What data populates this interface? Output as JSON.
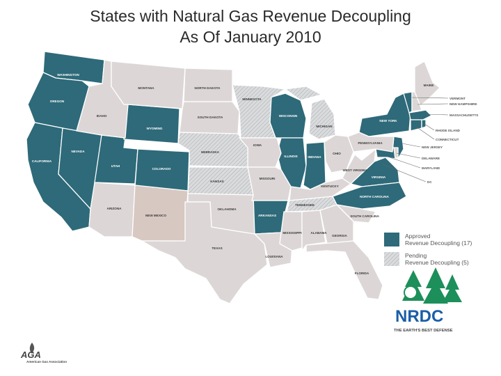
{
  "title": {
    "line1": "States with Natural Gas Revenue Decoupling",
    "line2": "As Of January 2010"
  },
  "colors": {
    "approved": "#2e6a79",
    "pending": "#cfd1d3",
    "other": "#dcd7d6",
    "new_mexico": "#d8c8c2",
    "nrdc_blue": "#1a5ea8",
    "nrdc_green": "#1d8f5a",
    "aga": "#444444"
  },
  "states": {
    "washington": "WASHINGTON",
    "oregon": "OREGON",
    "idaho": "IDAHO",
    "montana": "MONTANA",
    "wyoming": "WYOMING",
    "california": "CALIFORNIA",
    "nevada": "NEVADA",
    "utah": "UTAH",
    "colorado": "COLORADO",
    "arizona": "ARIZONA",
    "new_mexico": "NEW MEXICO",
    "north_dakota": "NORTH DAKOTA",
    "south_dakota": "SOUTH DAKOTA",
    "nebraska": "NEBRASKA",
    "kansas": "KANSAS",
    "oklahoma": "OKLAHOMA",
    "texas": "TEXAS",
    "minnesota": "MINNESOTA",
    "iowa": "IOWA",
    "missouri": "MISSOURI",
    "arkansas": "ARKANSAS",
    "louisiana": "LOUISIANA",
    "wisconsin": "WISCONSIN",
    "michigan": "MICHIGAN",
    "illinois": "ILLINOIS",
    "indiana": "INDIANA",
    "ohio": "OHIO",
    "kentucky": "KENTUCKY",
    "tennessee": "TENNESSEE",
    "mississippi": "MISSISSIPPI",
    "alabama": "ALABAMA",
    "georgia": "GEORGIA",
    "florida": "FLORIDA",
    "south_carolina": "SOUTH CAROLINA",
    "north_carolina": "NORTH CAROLINA",
    "virginia": "VIRGINIA",
    "west_virginia": "WEST VIRGINIA",
    "pennsylvania": "PENNSYLVANIA",
    "new_york": "NEW YORK",
    "maine": "MAINE"
  },
  "callouts": {
    "vermont": "VERMONT",
    "new_hampshire": "NEW HAMPSHIRE",
    "massachusetts": "MASSACHUSETTS",
    "rhode_island": "RHODE ISLAND",
    "connecticut": "CONNECTICUT",
    "new_jersey": "NEW JERSEY",
    "delaware": "DELAWARE",
    "maryland": "MARYLAND",
    "dc": "DC"
  },
  "legend": {
    "approved_line1": "Approved",
    "approved_line2": "Revenue Decoupling (17)",
    "pending_line1": "Pending",
    "pending_line2": "Revenue Decoupling (5)"
  },
  "nrdc": {
    "logo_text": "NRDC",
    "tagline": "THE EARTH'S BEST DEFENSE"
  },
  "aga": {
    "logo_text": "AGA",
    "name": "American Gas Association"
  }
}
